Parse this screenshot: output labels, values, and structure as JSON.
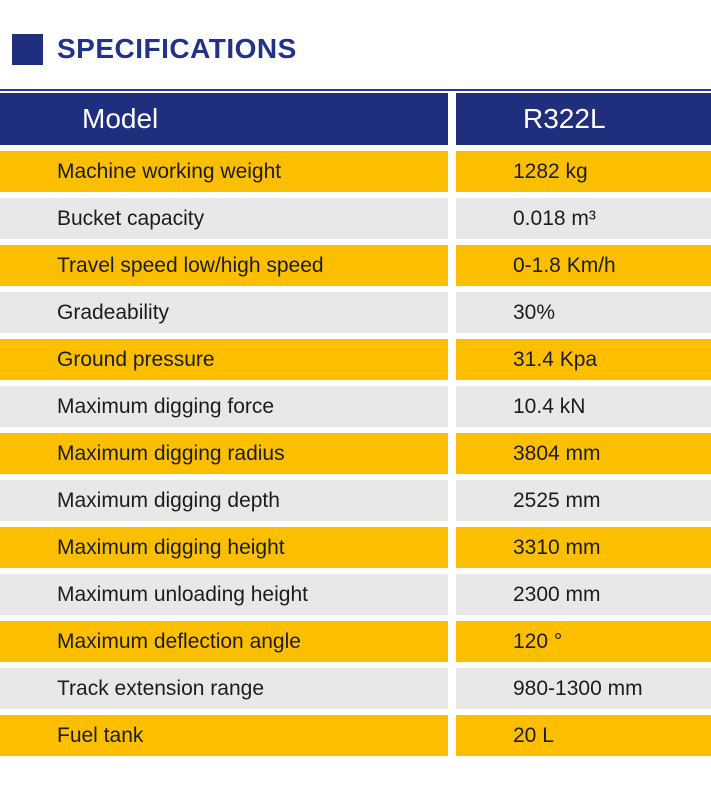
{
  "header": {
    "title": "SPECIFICATIONS"
  },
  "table": {
    "header": {
      "model_label": "Model",
      "model_value": "R322L"
    },
    "rows": [
      {
        "label": "Machine working weight",
        "value": "1282 kg"
      },
      {
        "label": "Bucket capacity",
        "value": "0.018 m³"
      },
      {
        "label": "Travel speed low/high speed",
        "value": "0-1.8 Km/h"
      },
      {
        "label": "Gradeability",
        "value": "30%"
      },
      {
        "label": "Ground pressure",
        "value": "31.4 Kpa"
      },
      {
        "label": "Maximum digging force",
        "value": "10.4 kN"
      },
      {
        "label": "Maximum digging radius",
        "value": "3804 mm"
      },
      {
        "label": "Maximum digging depth",
        "value": "2525 mm"
      },
      {
        "label": "Maximum digging height",
        "value": "3310 mm"
      },
      {
        "label": "Maximum unloading height",
        "value": "2300 mm"
      },
      {
        "label": "Maximum deflection angle",
        "value": "120 °"
      },
      {
        "label": "Track extension range",
        "value": "980-1300 mm"
      },
      {
        "label": "Fuel tank",
        "value": "20 L"
      }
    ]
  },
  "colors": {
    "navy": "#1F2F7E",
    "title_blue": "#213289",
    "rule_blue": "#283593",
    "yellow": "#FCBF00",
    "gray": "#E8E8E8",
    "row_text": "#1C1C1C",
    "header_text": "#FFFFFF",
    "page_bg": "#FFFFFF"
  }
}
